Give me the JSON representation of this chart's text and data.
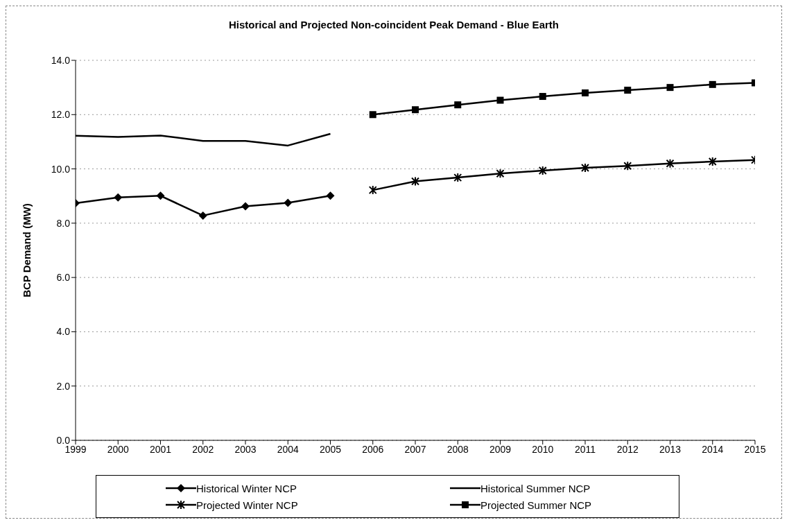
{
  "chart_data": {
    "type": "line",
    "title": "Historical and Projected Non-coincident Peak Demand - Blue Earth",
    "ylabel": "BCP Demand (MW)",
    "categories": [
      "1999",
      "2000",
      "2001",
      "2002",
      "2003",
      "2004",
      "2005",
      "2006",
      "2007",
      "2008",
      "2009",
      "2010",
      "2011",
      "2012",
      "2013",
      "2014",
      "2015"
    ],
    "series": [
      {
        "name": "Historical Winter NCP",
        "color": "#000000",
        "marker": "diamond",
        "values": [
          8.74,
          8.95,
          9.01,
          8.28,
          8.62,
          8.75,
          9.01,
          null,
          null,
          null,
          null,
          null,
          null,
          null,
          null,
          null,
          null
        ]
      },
      {
        "name": "Historical Summer NCP",
        "color": "#000000",
        "marker": "none",
        "values": [
          11.22,
          11.18,
          11.23,
          11.03,
          11.03,
          10.86,
          11.29,
          null,
          null,
          null,
          null,
          null,
          null,
          null,
          null,
          null,
          null
        ]
      },
      {
        "name": "Projected Winter NCP",
        "color": "#000000",
        "marker": "cross",
        "values": [
          null,
          null,
          null,
          null,
          null,
          null,
          null,
          9.22,
          9.54,
          9.68,
          9.83,
          9.94,
          10.04,
          10.11,
          10.2,
          10.27,
          10.33
        ]
      },
      {
        "name": "Projected Summer NCP",
        "color": "#000000",
        "marker": "square",
        "values": [
          null,
          null,
          null,
          null,
          null,
          null,
          null,
          12.0,
          12.18,
          12.36,
          12.53,
          12.67,
          12.8,
          12.9,
          13.0,
          13.11,
          13.17
        ]
      }
    ],
    "ylim": [
      0,
      14
    ],
    "yticks": [
      {
        "value": 0,
        "label": "0.0"
      },
      {
        "value": 2,
        "label": "2.0"
      },
      {
        "value": 4,
        "label": "4.0"
      },
      {
        "value": 6,
        "label": "6.0"
      },
      {
        "value": 8,
        "label": "8.0"
      },
      {
        "value": 10,
        "label": "10.0"
      },
      {
        "value": 12,
        "label": "12.0"
      },
      {
        "value": 14,
        "label": "14.0"
      }
    ],
    "grid": "y",
    "legend": "bottom",
    "line_style": "solid"
  }
}
